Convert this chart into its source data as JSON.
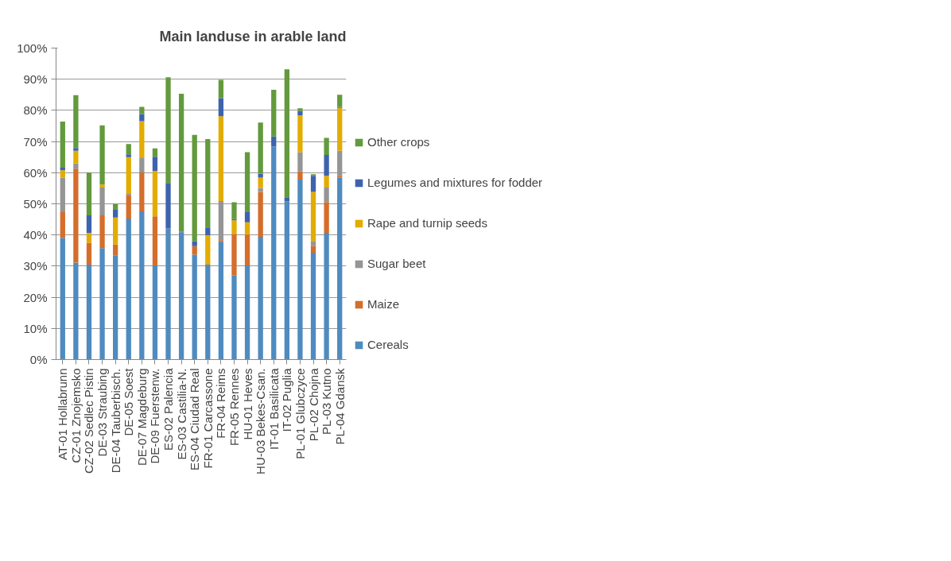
{
  "chart_data": {
    "type": "bar",
    "stacked": true,
    "title": "Main landuse in arable land",
    "categories": [
      "AT-01 Hollabrunn",
      "CZ-01 Znojemsko",
      "CZ-02 Sedlec Pistin",
      "DE-03 Straubing",
      "DE-04 Tauberbisch.",
      "DE-05 Soest",
      "DE-07 Magdeburg",
      "DE-09 Fuerstenw.",
      "ES-02 Palencia",
      "ES-03 Castilia-N.",
      "ES-04 Ciudad Real",
      "FR-01 Carcassone",
      "FR-04 Reims",
      "FR-05 Rennes",
      "HU-01 Heves",
      "HU-03 Bekes-Csan.",
      "IT-01 Basilicata",
      "IT-02 Puglia",
      "PL-01 Glubczyce",
      "PL-02 Chojna",
      "PL-03 Kutno",
      "PL-04 Gdansk"
    ],
    "series": [
      {
        "name": "Cereals",
        "color": "#4f8bbf",
        "values": [
          39.1,
          31.1,
          30.5,
          35.8,
          33.5,
          45.3,
          47.6,
          30.2,
          42.1,
          40.8,
          33.7,
          30.5,
          37.8,
          27.0,
          30.2,
          39.4,
          68.4,
          50.8,
          57.8,
          34.3,
          40.7,
          58.4
        ]
      },
      {
        "name": "Maize",
        "color": "#d46e2a",
        "values": [
          8.2,
          30.2,
          7.0,
          10.5,
          3.4,
          7.6,
          12.5,
          15.8,
          0,
          0,
          2.7,
          0,
          0.5,
          13.4,
          9.9,
          14.4,
          0,
          0,
          2.6,
          2.1,
          9.9,
          0.6
        ]
      },
      {
        "name": "Sugar beet",
        "color": "#959595",
        "values": [
          11.1,
          1.7,
          0,
          8.9,
          0,
          0.3,
          4.6,
          0,
          0,
          0,
          0,
          0,
          12.6,
          0,
          0,
          1.3,
          0,
          0,
          6.2,
          1.7,
          4.6,
          8.0
        ]
      },
      {
        "name": "Rape and turnip seeds",
        "color": "#e3ac00",
        "values": [
          2.4,
          4.0,
          3.2,
          1.0,
          8.7,
          11.8,
          11.8,
          14.6,
          0,
          0,
          0,
          9.4,
          27.2,
          4.3,
          4.0,
          3.3,
          0,
          0,
          11.8,
          15.7,
          3.8,
          13.8
        ]
      },
      {
        "name": "Legumes and mixtures for fodder",
        "color": "#3d63ad",
        "values": [
          0.8,
          0.9,
          5.6,
          0,
          2.7,
          0.9,
          2.3,
          4.5,
          14.6,
          0.2,
          1.6,
          2.5,
          5.8,
          0.4,
          3.2,
          1.3,
          3.2,
          1.3,
          1.4,
          5.2,
          6.7,
          0.3
        ]
      },
      {
        "name": "Other crops",
        "color": "#639a3d",
        "values": [
          14.8,
          17.0,
          13.7,
          19.0,
          1.6,
          3.3,
          2.3,
          2.7,
          33.9,
          44.3,
          34.1,
          28.4,
          5.9,
          5.4,
          19.3,
          16.4,
          15.0,
          41.1,
          0.9,
          0.5,
          5.5,
          3.9
        ]
      }
    ],
    "ylim": [
      0,
      100
    ],
    "yticks": [
      {
        "value": 0,
        "label": "0%"
      },
      {
        "value": 10,
        "label": "10%"
      },
      {
        "value": 20,
        "label": "20%"
      },
      {
        "value": 30,
        "label": "30%"
      },
      {
        "value": 40,
        "label": "40%"
      },
      {
        "value": 50,
        "label": "50%"
      },
      {
        "value": 60,
        "label": "60%"
      },
      {
        "value": 70,
        "label": "70%"
      },
      {
        "value": 80,
        "label": "80%"
      },
      {
        "value": 90,
        "label": "90%"
      },
      {
        "value": 100,
        "label": "100%"
      }
    ],
    "grid": "y",
    "legend": "right"
  }
}
